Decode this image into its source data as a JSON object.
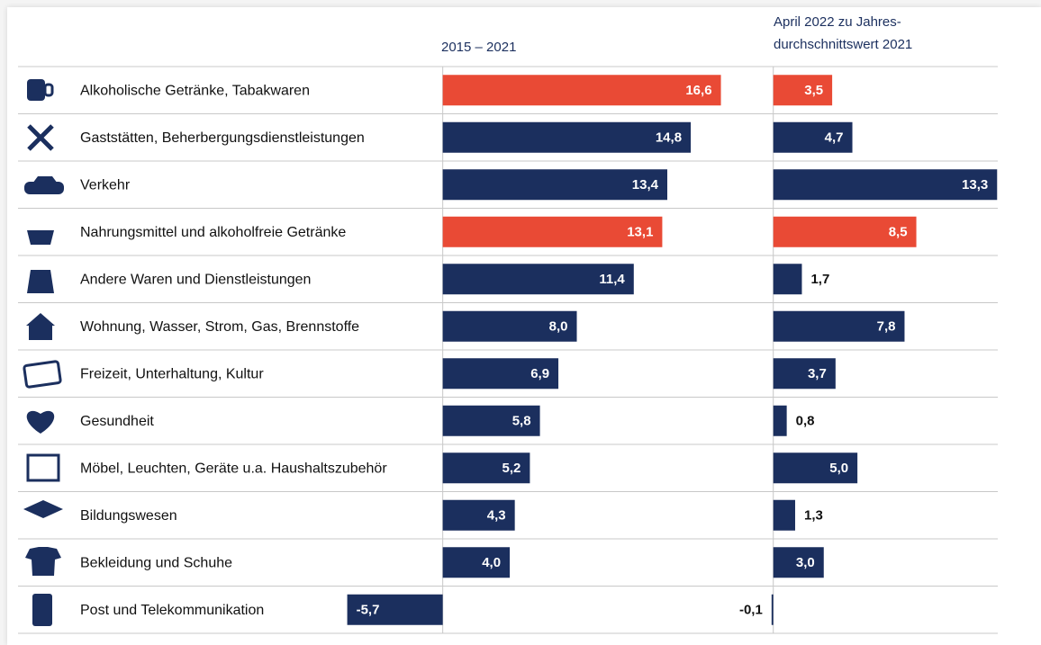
{
  "chart_data": {
    "type": "bar",
    "orientation": "horizontal",
    "categories": [
      "Alkoholische Getränke, Tabakwaren",
      "Gaststätten, Beherbergungsdienstleistungen",
      "Verkehr",
      "Nahrungsmittel und alkoholfreie Getränke",
      "Andere Waren und Dienstleistungen",
      "Wohnung, Wasser, Strom, Gas, Brennstoffe",
      "Freizeit, Unterhaltung, Kultur",
      "Gesundheit",
      "Möbel, Leuchten, Geräte u.a. Haushaltszubehör",
      "Bildungswesen",
      "Bekleidung und Schuhe",
      "Post und Telekommunikation"
    ],
    "series": [
      {
        "name": "2015 – 2021",
        "color": "#1b2f5e",
        "colors": [
          "#e94a35",
          "#1b2f5e",
          "#1b2f5e",
          "#e94a35",
          "#1b2f5e",
          "#1b2f5e",
          "#1b2f5e",
          "#1b2f5e",
          "#1b2f5e",
          "#1b2f5e",
          "#1b2f5e",
          "#1b2f5e"
        ],
        "values": [
          16.6,
          14.8,
          13.4,
          13.1,
          11.4,
          8.0,
          6.9,
          5.8,
          5.2,
          4.3,
          4.0,
          -5.7
        ],
        "value_labels": [
          "16,6",
          "14,8",
          "13,4",
          "13,1",
          "11,4",
          "8,0",
          "6,9",
          "5,8",
          "5,2",
          "4,3",
          "4,0",
          "-5,7"
        ],
        "xlim": [
          -6,
          17
        ]
      },
      {
        "name": "April 2022 zu Jahres-\ndurchschnittswert 2021",
        "color": "#1b2f5e",
        "colors": [
          "#e94a35",
          "#1b2f5e",
          "#1b2f5e",
          "#e94a35",
          "#1b2f5e",
          "#1b2f5e",
          "#1b2f5e",
          "#1b2f5e",
          "#1b2f5e",
          "#1b2f5e",
          "#1b2f5e",
          "#1b2f5e"
        ],
        "values": [
          3.5,
          4.7,
          13.3,
          8.5,
          1.7,
          7.8,
          3.7,
          0.8,
          5.0,
          1.3,
          3.0,
          -0.1
        ],
        "value_labels": [
          "3,5",
          "4,7",
          "13,3",
          "8,5",
          "1,7",
          "7,8",
          "3,7",
          "0,8",
          "5,0",
          "1,3",
          "3,0",
          "-0,1"
        ],
        "xlim": [
          -1,
          13.5
        ]
      }
    ]
  }
}
